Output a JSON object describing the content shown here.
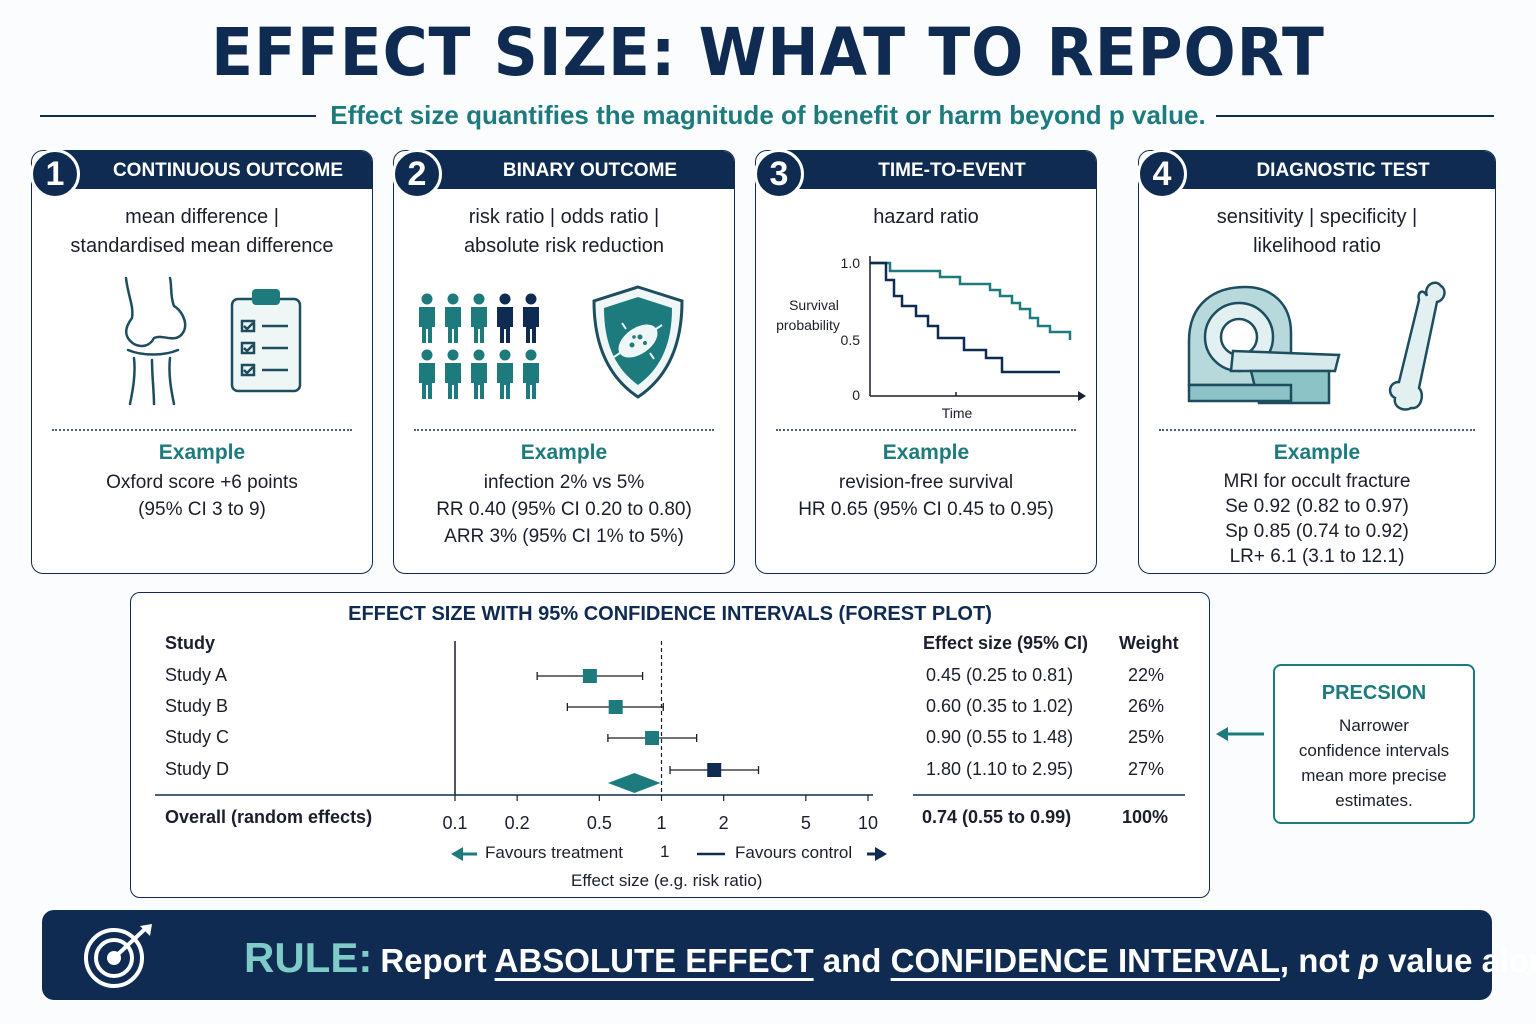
{
  "title": "EFFECT SIZE: WHAT TO REPORT",
  "subtitle": "Effect size quantifies the magnitude of benefit or harm beyond p value.",
  "cards": [
    {
      "number": "1",
      "title": "CONTINUOUS OUTCOME",
      "measures_line1": "mean difference  |",
      "measures_line2": "standardised mean difference",
      "icons": [
        "knee-joint-icon",
        "clipboard-checklist-icon"
      ],
      "example_label": "Example",
      "example_lines": [
        "Oxford score +6 points",
        "(95% CI 3 to 9)"
      ]
    },
    {
      "number": "2",
      "title": "BINARY OUTCOME",
      "measures_line1": "risk ratio  |  odds ratio  |",
      "measures_line2": "absolute risk reduction",
      "icons": [
        "people-group-icon",
        "shield-bacteria-icon"
      ],
      "example_label": "Example",
      "example_lines": [
        "infection 2% vs 5%",
        "RR 0.40 (95% CI 0.20 to 0.80)",
        "ARR 3% (95% CI 1% to 5%)"
      ]
    },
    {
      "number": "3",
      "title": "TIME-TO-EVENT",
      "measures_line1": "hazard ratio",
      "measures_line2": "",
      "icons": [
        "survival-curve-icon"
      ],
      "chart": {
        "y_label_1": "Survival",
        "y_label_2": "probability",
        "y_ticks": [
          "1.0",
          "0.5",
          "0"
        ],
        "x_label": "Time"
      },
      "example_label": "Example",
      "example_lines": [
        "revision-free survival",
        "HR 0.65 (95% CI 0.45 to 0.95)"
      ]
    },
    {
      "number": "4",
      "title": "DIAGNOSTIC TEST",
      "measures_line1": "sensitivity  |  specificity  |",
      "measures_line2": "likelihood ratio",
      "icons": [
        "mri-scanner-icon",
        "bone-icon"
      ],
      "example_label": "Example",
      "example_lines": [
        "MRI for occult fracture",
        "Se 0.92 (0.82 to 0.97)",
        "Sp 0.85 (0.74 to 0.92)",
        "LR+ 6.1 (3.1 to 12.1)"
      ]
    }
  ],
  "forest": {
    "title": "EFFECT SIZE WITH 95% CONFIDENCE INTERVALS (FOREST PLOT)",
    "col_study": "Study",
    "col_effect": "Effect size (95% CI)",
    "col_weight": "Weight",
    "studies": [
      {
        "name": "Study A",
        "effect": 0.45,
        "lo": 0.25,
        "hi": 0.81,
        "label": "0.45 (0.25 to 0.81)",
        "weight": "22%"
      },
      {
        "name": "Study B",
        "effect": 0.6,
        "lo": 0.35,
        "hi": 1.02,
        "label": "0.60 (0.35 to 1.02)",
        "weight": "26%"
      },
      {
        "name": "Study C",
        "effect": 0.9,
        "lo": 0.55,
        "hi": 1.48,
        "label": "0.90 (0.55 to 1.48)",
        "weight": "25%"
      },
      {
        "name": "Study D",
        "effect": 1.8,
        "lo": 1.1,
        "hi": 2.95,
        "label": "1.80 (1.10 to 2.95)",
        "weight": "27%"
      }
    ],
    "overall": {
      "name": "Overall (random effects)",
      "effect": 0.74,
      "lo": 0.55,
      "hi": 0.99,
      "label": "0.74 (0.55 to 0.99)",
      "weight": "100%"
    },
    "axis_ticks": [
      "0.1",
      "0.2",
      "0.5",
      "1",
      "2",
      "5",
      "10"
    ],
    "favours_left": "Favours treatment",
    "favours_mid": "1",
    "favours_right": "Favours control",
    "x_label": "Effect size (e.g. risk ratio)"
  },
  "precision": {
    "title": "PRECSION",
    "body_lines": [
      "Narrower",
      "confidence intervals",
      "mean more precise",
      "estimates."
    ]
  },
  "rule": {
    "label": "RULE:",
    "text_1": "Report ",
    "emph_1": "ABSOLUTE EFFECT",
    "text_2": " and ",
    "emph_2": "CONFIDENCE INTERVAL",
    "text_3": ", not ",
    "p": "p",
    "text_4": " value alone."
  },
  "colors": {
    "navy": "#0f2b52",
    "teal": "#1d7b7d",
    "light_teal": "#7ecbc8"
  }
}
